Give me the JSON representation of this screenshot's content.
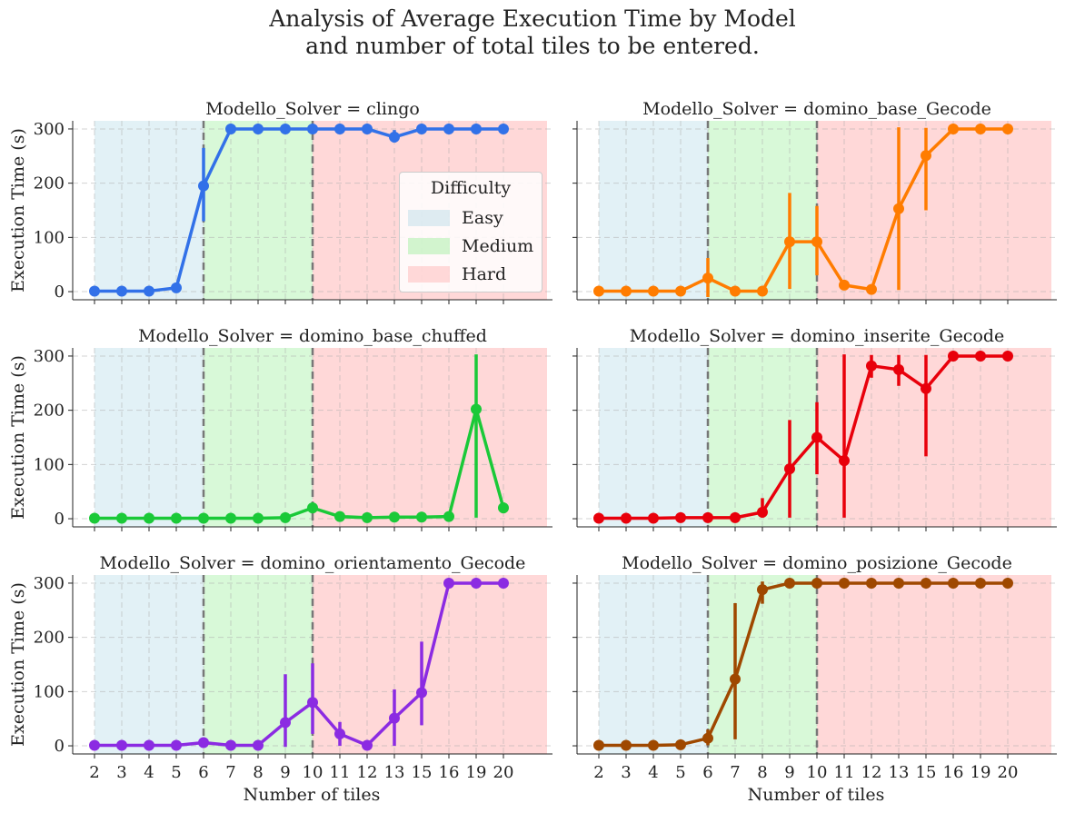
{
  "suptitle": [
    "Analysis of Average Execution Time by Model",
    "and number of total tiles to be entered."
  ],
  "legend": {
    "title": "Difficulty",
    "items": [
      {
        "label": "Easy",
        "color": "#add8e6"
      },
      {
        "label": "Medium",
        "color": "#90ee90"
      },
      {
        "label": "Hard",
        "color": "#ffa8a8"
      }
    ]
  },
  "chart_data": {
    "type": "line",
    "categories": [
      "2",
      "3",
      "4",
      "5",
      "6",
      "7",
      "8",
      "9",
      "10",
      "11",
      "12",
      "13",
      "15",
      "16",
      "19",
      "20"
    ],
    "xlabel": "Number of tiles",
    "ylabel": "Execution Time (s)",
    "yticks": [
      0,
      100,
      200,
      300
    ],
    "ylim": [
      -15,
      315
    ],
    "grid": true,
    "difficulty_regions": [
      {
        "label": "Easy",
        "from": "2",
        "to": "6"
      },
      {
        "label": "Medium",
        "from": "6",
        "to": "10"
      },
      {
        "label": "Hard",
        "from": "10",
        "to": "20"
      }
    ],
    "panels": [
      {
        "title": "Modello_Solver = clingo",
        "color": "#3271e8",
        "values": [
          1,
          1,
          1,
          7,
          195,
          300,
          300,
          300,
          300,
          300,
          300,
          285,
          300,
          300,
          300,
          300
        ],
        "err": [
          null,
          null,
          null,
          null,
          [
            130,
            265
          ],
          null,
          null,
          null,
          null,
          null,
          null,
          [
            275,
            298
          ],
          null,
          null,
          null,
          null
        ]
      },
      {
        "title": "Modello_Solver = domino_base_Gecode",
        "color": "#ff7c00",
        "values": [
          1,
          1,
          1,
          1,
          25,
          1,
          1,
          92,
          92,
          12,
          4,
          153,
          251,
          300,
          300,
          300
        ],
        "err": [
          null,
          null,
          null,
          null,
          [
            -10,
            62
          ],
          null,
          null,
          [
            5,
            182
          ],
          [
            30,
            158
          ],
          null,
          null,
          [
            3,
            303
          ],
          [
            150,
            302
          ],
          null,
          null,
          null
        ]
      },
      {
        "title": "Modello_Solver = domino_base_chuffed",
        "color": "#1ac938",
        "values": [
          1,
          1,
          1,
          1,
          1,
          1,
          1,
          2,
          20,
          4,
          2,
          3,
          3,
          4,
          202,
          20
        ],
        "err": [
          null,
          null,
          null,
          null,
          null,
          null,
          null,
          null,
          [
            10,
            30
          ],
          null,
          null,
          null,
          null,
          null,
          [
            2,
            303
          ],
          [
            10,
            30
          ]
        ]
      },
      {
        "title": "Modello_Solver = domino_inserite_Gecode",
        "color": "#e8000b",
        "values": [
          1,
          1,
          1,
          2,
          2,
          2,
          12,
          92,
          150,
          107,
          282,
          275,
          240,
          300,
          300,
          300
        ],
        "err": [
          null,
          null,
          null,
          null,
          null,
          null,
          [
            2,
            38
          ],
          [
            2,
            182
          ],
          [
            82,
            215
          ],
          [
            2,
            303
          ],
          [
            260,
            302
          ],
          [
            245,
            302
          ],
          [
            115,
            302
          ],
          null,
          null,
          null
        ]
      },
      {
        "title": "Modello_Solver = domino_orientamento_Gecode",
        "color": "#8b2be2",
        "values": [
          1,
          1,
          1,
          1,
          6,
          1,
          1,
          43,
          80,
          22,
          1,
          51,
          98,
          300,
          300,
          300
        ],
        "err": [
          null,
          null,
          null,
          null,
          null,
          null,
          null,
          [
            -2,
            132
          ],
          [
            22,
            152
          ],
          [
            0,
            44
          ],
          null,
          [
            0,
            104
          ],
          [
            38,
            192
          ],
          null,
          null,
          null
        ]
      },
      {
        "title": "Modello_Solver = domino_posizione_Gecode",
        "color": "#9f4800",
        "values": [
          1,
          1,
          1,
          2,
          14,
          123,
          288,
          300,
          300,
          300,
          300,
          300,
          300,
          300,
          300,
          300
        ],
        "err": [
          null,
          null,
          null,
          null,
          [
            1,
            30
          ],
          [
            12,
            263
          ],
          [
            262,
            303
          ],
          null,
          null,
          null,
          null,
          null,
          null,
          null,
          null,
          null
        ]
      }
    ]
  }
}
